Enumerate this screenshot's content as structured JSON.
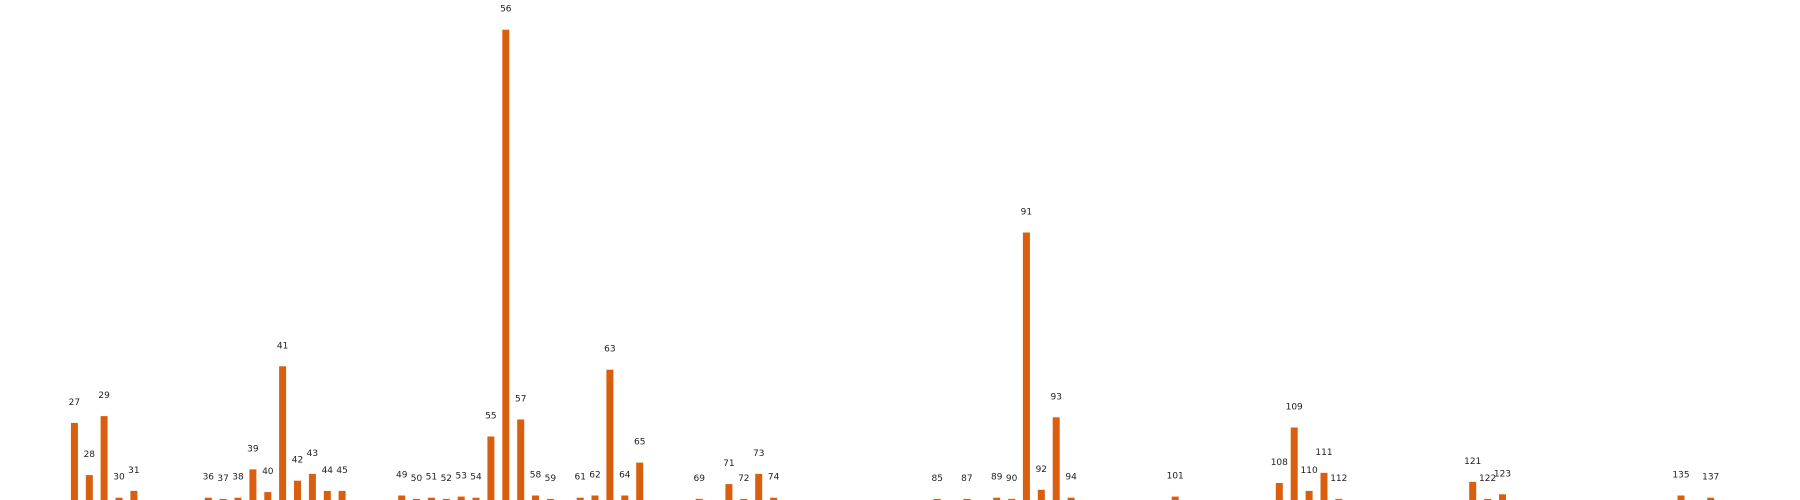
{
  "chart_data": {
    "type": "bar",
    "x": [
      27,
      28,
      29,
      30,
      31,
      36,
      37,
      38,
      39,
      40,
      41,
      42,
      43,
      44,
      45,
      49,
      50,
      51,
      52,
      53,
      54,
      55,
      56,
      57,
      58,
      59,
      61,
      62,
      63,
      64,
      65,
      69,
      71,
      72,
      73,
      74,
      85,
      87,
      89,
      90,
      91,
      92,
      93,
      94,
      101,
      108,
      109,
      110,
      111,
      112,
      121,
      122,
      123,
      135,
      137
    ],
    "labels": [
      "27",
      "28",
      "29",
      "30",
      "31",
      "36",
      "37",
      "38",
      "39",
      "40",
      "41",
      "42",
      "43",
      "44",
      "45",
      "49",
      "50",
      "51",
      "52",
      "53",
      "54",
      "55",
      "56",
      "57",
      "58",
      "59",
      "61",
      "62",
      "63",
      "64",
      "65",
      "69",
      "71",
      "72",
      "73",
      "74",
      "85",
      "87",
      "89",
      "90",
      "91",
      "92",
      "93",
      "94",
      "101",
      "108",
      "109",
      "110",
      "111",
      "112",
      "121",
      "122",
      "123",
      "135",
      "137"
    ],
    "values": [
      68,
      22,
      74,
      2,
      8,
      2,
      1,
      2,
      27,
      7,
      118,
      17,
      23,
      8,
      8,
      4,
      1,
      2,
      1,
      3,
      2,
      56,
      415,
      71,
      4,
      1,
      2,
      4,
      115,
      4,
      33,
      1,
      14,
      1,
      23,
      2,
      1,
      1,
      2,
      1,
      236,
      9,
      73,
      2,
      3,
      15,
      64,
      8,
      24,
      1,
      16,
      1,
      5,
      4,
      2
    ],
    "xlim": [
      22,
      143
    ],
    "ylim": [
      0,
      420
    ],
    "color": "#d95f0e",
    "title": "",
    "xlabel": "",
    "ylabel": "",
    "grid": false,
    "axes_visible": false
  }
}
